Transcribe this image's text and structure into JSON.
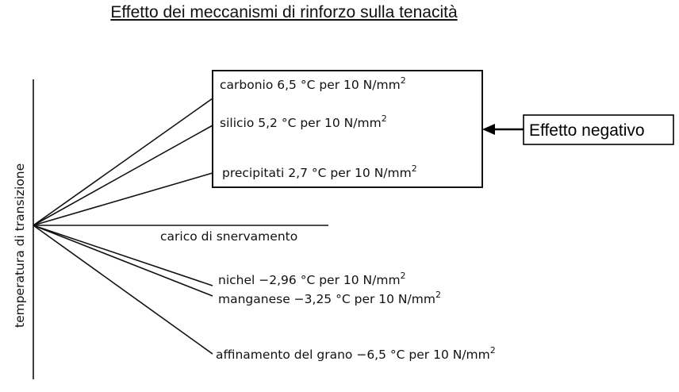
{
  "title": "Effetto dei meccanismi di rinforzo sulla tenacità",
  "y_axis_label": "temperatura di transizione",
  "baseline_label": "carico di snervamento",
  "positive_effects": [
    {
      "name": "carbonio",
      "value": "6,5",
      "unit_prefix": "°C per 10 N/mm",
      "exp": "2"
    },
    {
      "name": "silicio",
      "value": "5,2",
      "unit_prefix": "°C per 10 N/mm",
      "exp": "2"
    },
    {
      "name": "precipitati",
      "value": "2,7",
      "unit_prefix": "°C per 10 N/mm",
      "exp": "2"
    }
  ],
  "negative_effects": [
    {
      "name": "nichel",
      "value": "−2,96",
      "unit_prefix": "°C per 10 N/mm",
      "exp": "2"
    },
    {
      "name": "manganese",
      "value": "−3,25",
      "unit_prefix": "°C per 10 N/mm",
      "exp": "2"
    },
    {
      "name": "affinamento del grano",
      "value": "−6,5",
      "unit_prefix": "°C per 10 N/mm",
      "exp": "2"
    }
  ],
  "callout_label": "Effetto negativo"
}
